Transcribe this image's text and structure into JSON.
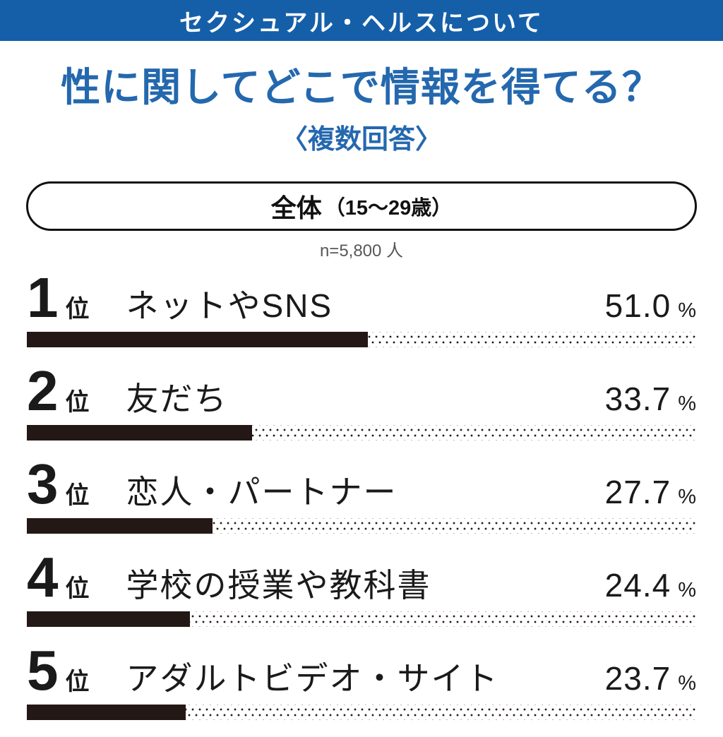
{
  "banner": {
    "text": "セクシュアル・ヘルスについて"
  },
  "header": {
    "title": "性に関してどこで情報を得てる？",
    "subtitle": "〈複数回答〉"
  },
  "group_pill": {
    "main": "全体",
    "range": "（15〜29歳）"
  },
  "sample_size": "n=5,800 人",
  "colors": {
    "banner_bg": "#155fa9",
    "banner_text": "#ffffff",
    "title_text": "#2468ae",
    "bar_fill": "#231815",
    "dot_color": "#231815",
    "sample_text": "#595757",
    "body_text": "#1a1a1a"
  },
  "chart_data": {
    "type": "bar",
    "orientation": "horizontal",
    "title": "性に関してどこで情報を得てる？",
    "subtitle": "〈複数回答〉",
    "group": "全体（15〜29歳）",
    "sample_n": 5800,
    "unit": "%",
    "value_range": [
      0,
      100
    ],
    "categories": [
      "ネットやSNS",
      "友だち",
      "恋人・パートナー",
      "学校の授業や教科書",
      "アダルトビデオ・サイト"
    ],
    "values": [
      51.0,
      33.7,
      27.7,
      24.4,
      23.7
    ],
    "ranks": [
      1,
      2,
      3,
      4,
      5
    ],
    "legend": "none",
    "grid": false,
    "bar_style": "solid fill with dotted remainder track to 100%"
  },
  "rows": [
    {
      "rank": "1",
      "rank_suffix": "位",
      "label": "ネットやSNS",
      "value": "51.0",
      "unit": "%",
      "pct": 51.0
    },
    {
      "rank": "2",
      "rank_suffix": "位",
      "label": "友だち",
      "value": "33.7",
      "unit": "%",
      "pct": 33.7
    },
    {
      "rank": "3",
      "rank_suffix": "位",
      "label": "恋人・パートナー",
      "value": "27.7",
      "unit": "%",
      "pct": 27.7
    },
    {
      "rank": "4",
      "rank_suffix": "位",
      "label": "学校の授業や教科書",
      "value": "24.4",
      "unit": "%",
      "pct": 24.4
    },
    {
      "rank": "5",
      "rank_suffix": "位",
      "label": "アダルトビデオ・サイト",
      "value": "23.7",
      "unit": "%",
      "pct": 23.7
    }
  ]
}
